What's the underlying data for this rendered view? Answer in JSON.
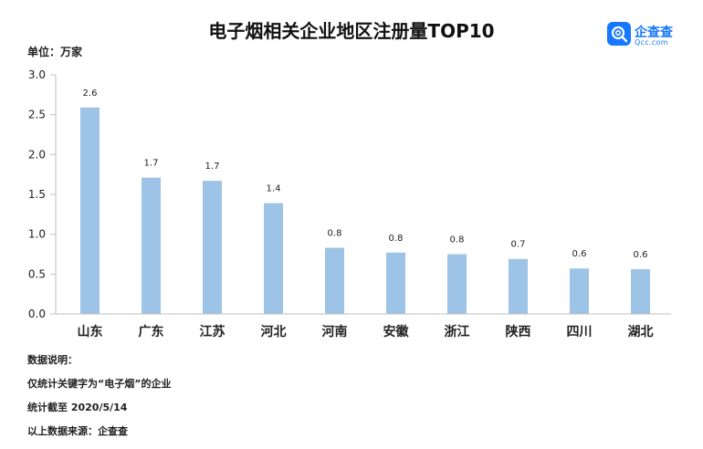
{
  "brand": {
    "name": "企查查",
    "url": "Qcc.com",
    "color": "#1677ff"
  },
  "chart_data": {
    "type": "bar",
    "title": "电子烟相关企业地区注册量TOP10",
    "unit_label": "单位：万家",
    "categories": [
      "山东",
      "广东",
      "江苏",
      "河北",
      "河南",
      "安徽",
      "浙江",
      "陕西",
      "四川",
      "湖北"
    ],
    "values": [
      2.59,
      1.71,
      1.67,
      1.39,
      0.83,
      0.77,
      0.75,
      0.69,
      0.57,
      0.56
    ],
    "data_labels": [
      "2.6",
      "1.7",
      "1.7",
      "1.4",
      "0.8",
      "0.8",
      "0.8",
      "0.7",
      "0.6",
      "0.6"
    ],
    "yticks": [
      "0.0",
      "0.5",
      "1.0",
      "1.5",
      "2.0",
      "2.5",
      "3.0"
    ],
    "ylim": [
      0,
      3.0
    ],
    "grid": false,
    "bar_color": "#9dc3e6"
  },
  "notes": [
    "数据说明：",
    "仅统计关键字为“电子烟”的企业",
    "统计截至 2020/5/14",
    "以上数据来源：企查查"
  ]
}
